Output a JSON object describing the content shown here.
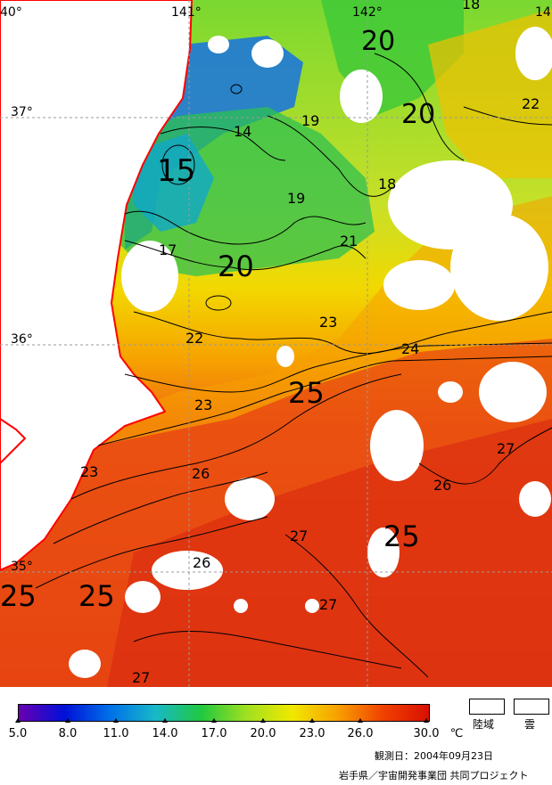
{
  "map": {
    "lon_labels": [
      "40°",
      "141°",
      "142°",
      "14"
    ],
    "lat_labels": [
      "37°",
      "36°",
      "35°"
    ],
    "colors": {
      "land": "#ffffff",
      "coast": "#ff0000",
      "grid": "#9a9a9a",
      "isotherm": "#000000",
      "cloud": "#ffffff"
    },
    "isotherm_labels": [
      {
        "id": "l20a",
        "text": "20"
      },
      {
        "id": "l18a",
        "text": "18"
      },
      {
        "id": "l20b",
        "text": "20"
      },
      {
        "id": "l22a",
        "text": "22"
      },
      {
        "id": "l14a",
        "text": "14"
      },
      {
        "id": "l19a",
        "text": "19"
      },
      {
        "id": "l15a",
        "text": "15"
      },
      {
        "id": "l18b",
        "text": "18"
      },
      {
        "id": "l19b",
        "text": "19"
      },
      {
        "id": "l21a",
        "text": "21"
      },
      {
        "id": "l17a",
        "text": "17"
      },
      {
        "id": "l20c",
        "text": "20"
      },
      {
        "id": "l23a",
        "text": "23"
      },
      {
        "id": "l22b",
        "text": "22"
      },
      {
        "id": "l24a",
        "text": "24"
      },
      {
        "id": "l25a",
        "text": "25"
      },
      {
        "id": "l23b",
        "text": "23"
      },
      {
        "id": "l27a",
        "text": "27"
      },
      {
        "id": "l23c",
        "text": "23"
      },
      {
        "id": "l26a",
        "text": "26"
      },
      {
        "id": "l26b",
        "text": "26"
      },
      {
        "id": "l25b",
        "text": "25"
      },
      {
        "id": "l27b",
        "text": "27"
      },
      {
        "id": "l26c",
        "text": "26"
      },
      {
        "id": "l25c",
        "text": "25"
      },
      {
        "id": "l25d",
        "text": "25"
      },
      {
        "id": "l27c",
        "text": "27"
      },
      {
        "id": "l27d",
        "text": "27"
      }
    ]
  },
  "legend": {
    "ticks": [
      "5.0",
      "8.0",
      "11.0",
      "14.0",
      "17.0",
      "20.0",
      "23.0",
      "26.0",
      "30.0"
    ],
    "unit": "℃",
    "key_land": "陸域",
    "key_cloud": "雲",
    "observation_date": "観測日：2004年09月23日",
    "credit": "岩手県／宇宙開発事業団  共同プロジェクト",
    "colors": [
      "#6a00b0",
      "#0010d8",
      "#0070e8",
      "#18b8c8",
      "#20c840",
      "#a0e020",
      "#f0e800",
      "#f8a000",
      "#f04000",
      "#d81000"
    ]
  }
}
